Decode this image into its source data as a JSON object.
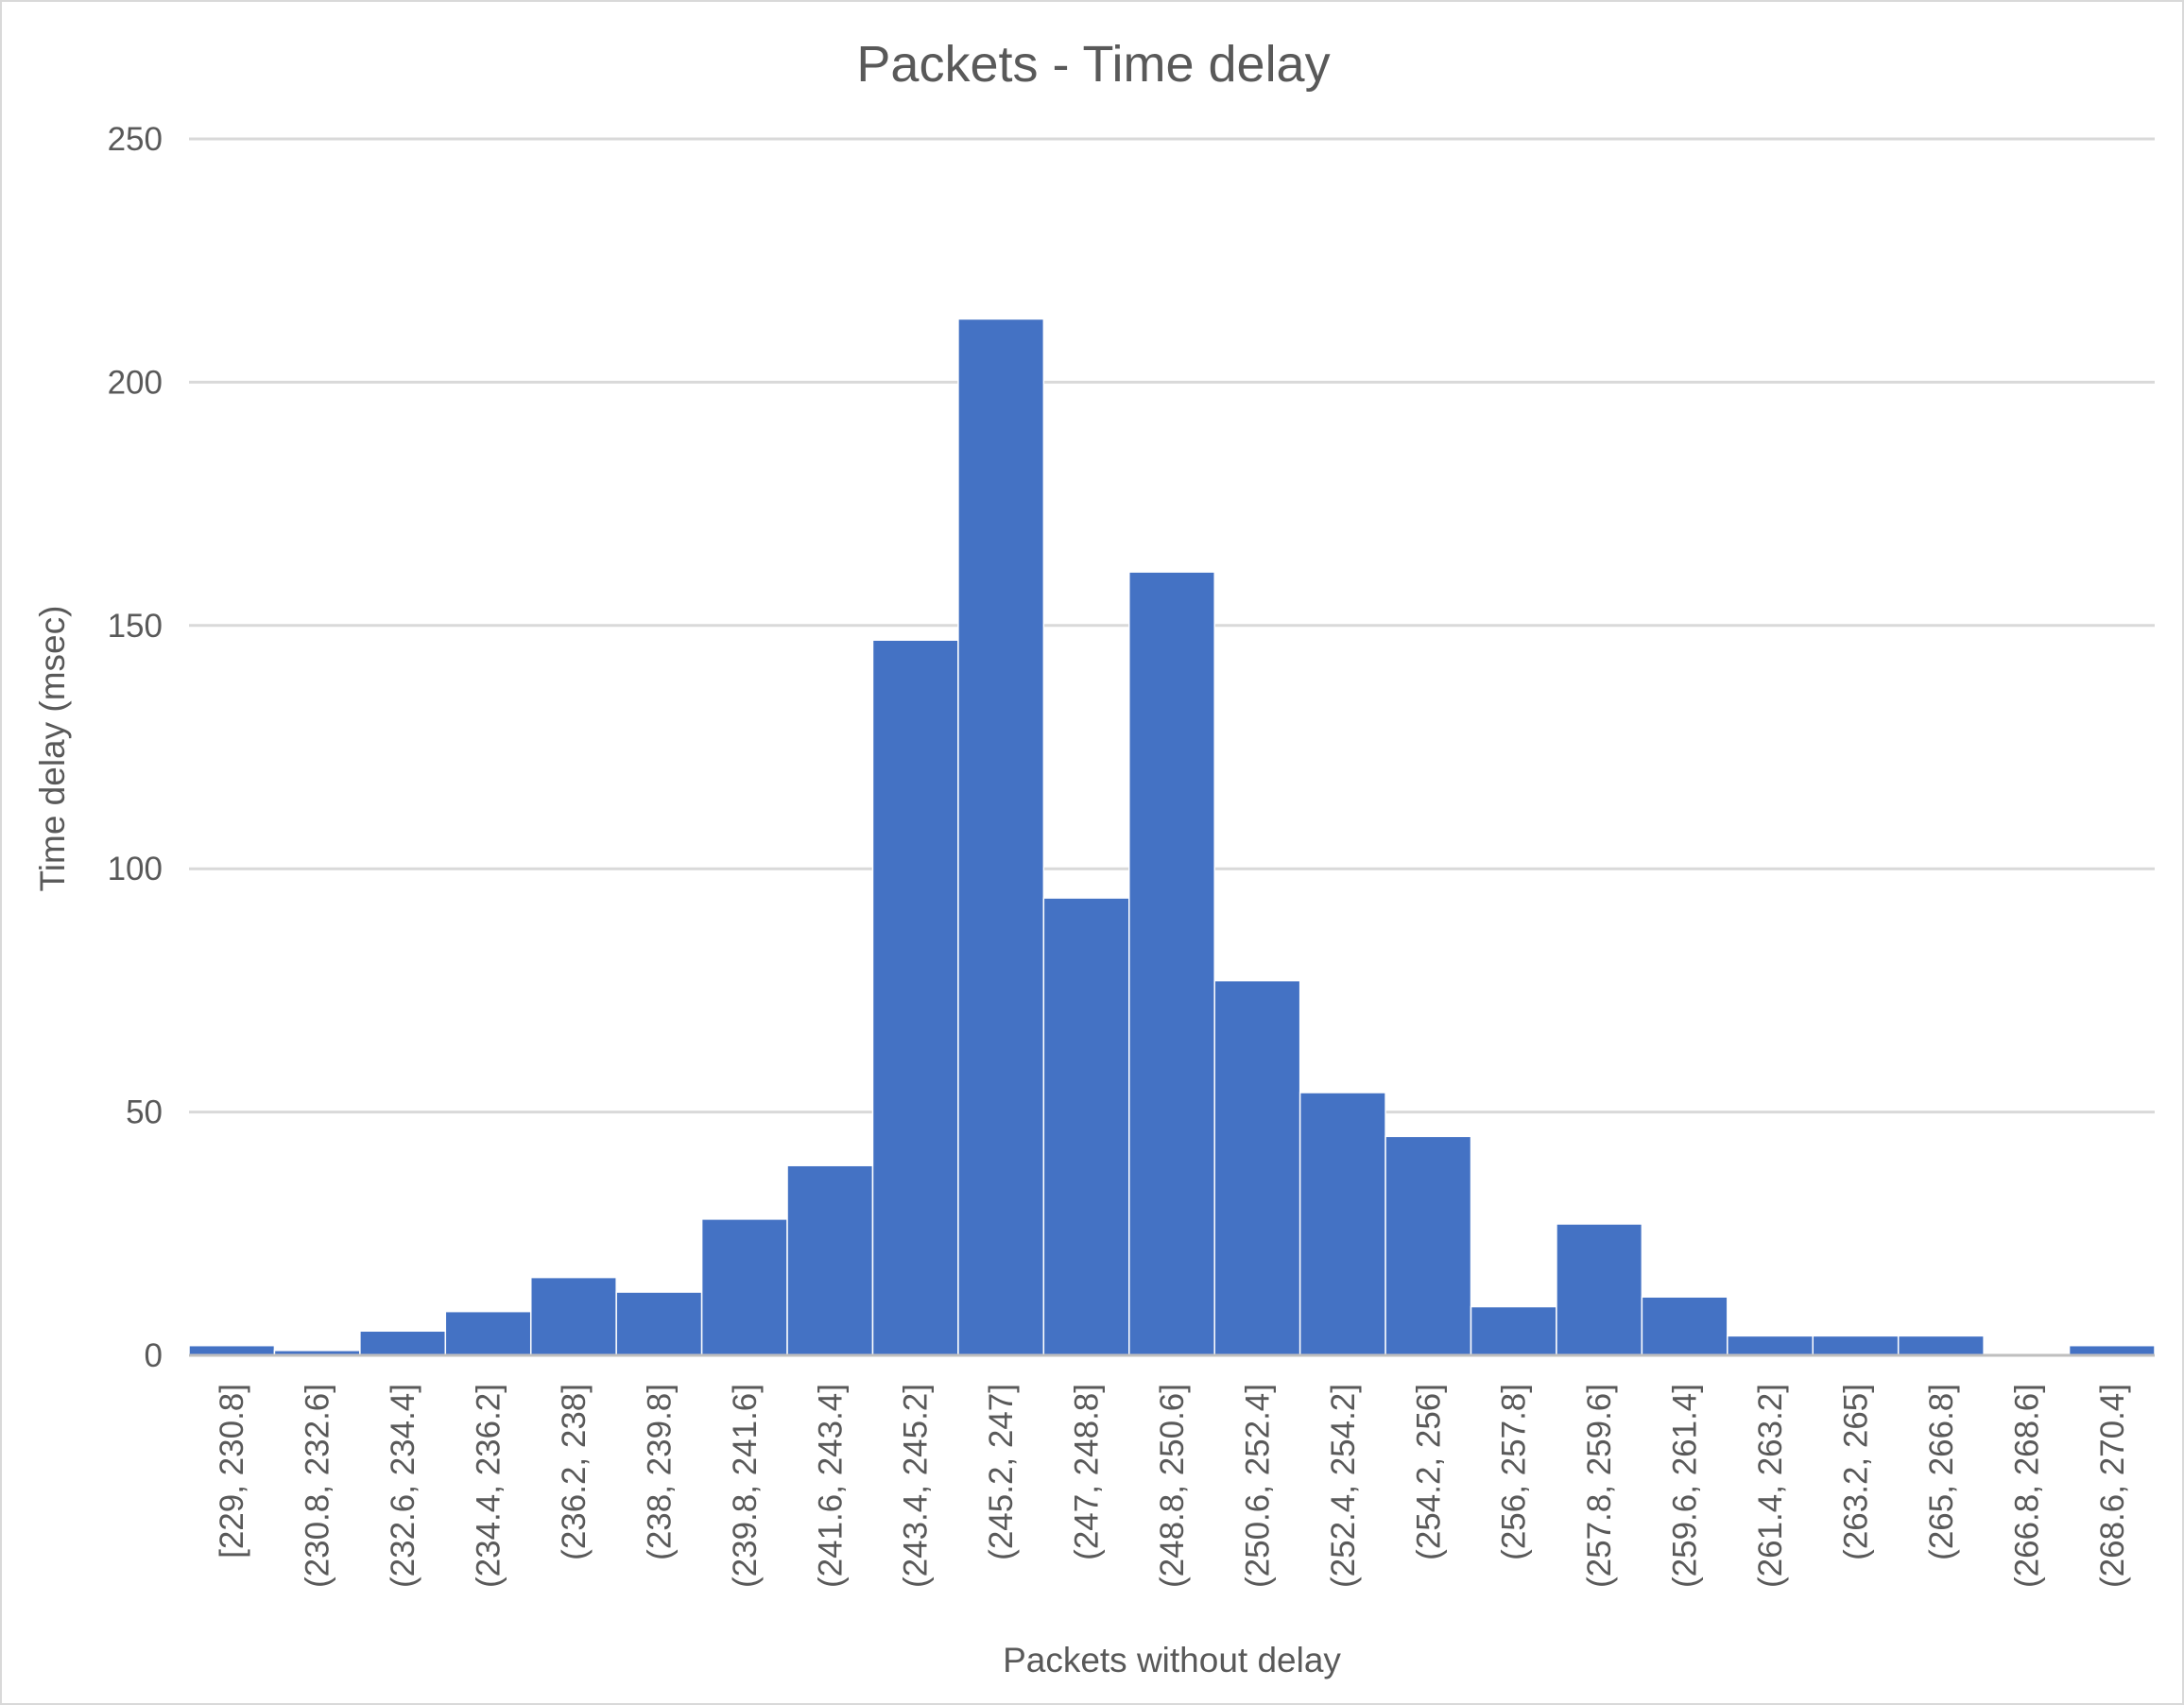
{
  "chart_data": {
    "type": "bar",
    "title": "Packets - Time delay",
    "xlabel": "Packets without delay",
    "ylabel": "Time delay (msec)",
    "ylim": [
      0,
      250
    ],
    "yticks": [
      0,
      50,
      100,
      150,
      200,
      250
    ],
    "grid": true,
    "legend": "none",
    "bar_color": "#4472C4",
    "categories": [
      "[229, 230.8]",
      "(230.8, 232.6]",
      "(232.6, 234.4]",
      "(234.4, 236.2]",
      "(236.2, 238]",
      "(238, 239.8]",
      "(239.8, 241.6]",
      "(241.6, 243.4]",
      "(243.4, 245.2]",
      "(245.2, 247]",
      "(247, 248.8]",
      "(248.8, 250.6]",
      "(250.6, 252.4]",
      "(252.4, 254.2]",
      "(254.2, 256]",
      "(256, 257.8]",
      "(257.8, 259.6]",
      "(259.6, 261.4]",
      "(261.4, 263.2]",
      "(263.2, 265]",
      "(265, 266.8]",
      "(266.8, 268.6]",
      "(268.6, 270.4]"
    ],
    "values": [
      2,
      1,
      5,
      9,
      16,
      13,
      28,
      39,
      147,
      213,
      94,
      161,
      77,
      54,
      45,
      10,
      27,
      12,
      4,
      4,
      4,
      0,
      2
    ]
  }
}
